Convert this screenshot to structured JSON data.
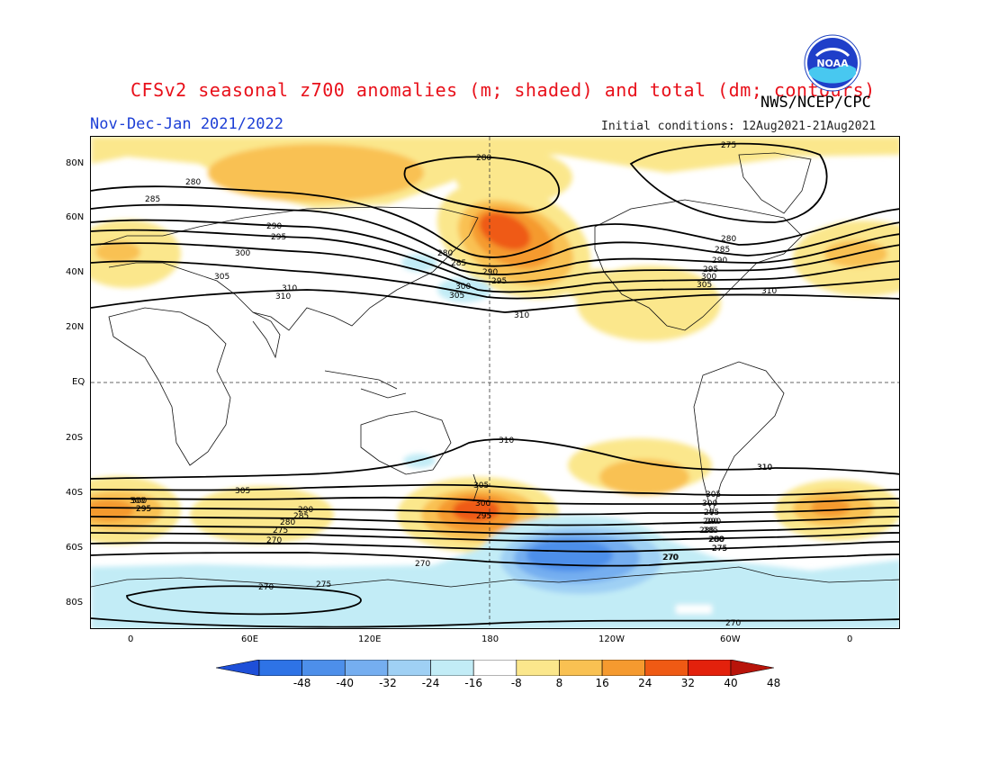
{
  "header": {
    "title": "CFSv2 seasonal z700 anomalies (m; shaded) and total (dm; contours)",
    "agency": "NWS/NCEP/CPC",
    "period": "Nov-Dec-Jan 2021/2022",
    "initial_conditions": "Initial conditions: 12Aug2021-21Aug2021",
    "logo_text": "NOAA"
  },
  "axes": {
    "lat_labels": [
      "80N",
      "60N",
      "40N",
      "20N",
      "EQ",
      "20S",
      "40S",
      "60S",
      "80S"
    ],
    "lon_labels": [
      "0",
      "60E",
      "120E",
      "180",
      "120W",
      "60W",
      "0"
    ]
  },
  "colorbar": {
    "labels": [
      "-48",
      "-40",
      "-32",
      "-24",
      "-16",
      "-8",
      "8",
      "16",
      "24",
      "32",
      "40",
      "48"
    ],
    "colors": [
      "#1e4fd8",
      "#2e73e6",
      "#4d8fea",
      "#75aef0",
      "#9fd0f4",
      "#c2ecf6",
      "#ffffff",
      "#fbe78c",
      "#f9c152",
      "#f59a2f",
      "#ef5a14",
      "#e3210c",
      "#b8140a"
    ]
  },
  "contour_labels": [
    {
      "text": "275"
    },
    {
      "text": "280"
    },
    {
      "text": "280"
    },
    {
      "text": "285"
    },
    {
      "text": "290"
    },
    {
      "text": "295"
    },
    {
      "text": "300"
    },
    {
      "text": "305"
    },
    {
      "text": "310"
    },
    {
      "text": "310"
    },
    {
      "text": "280"
    },
    {
      "text": "285"
    },
    {
      "text": "290"
    },
    {
      "text": "295"
    },
    {
      "text": "300"
    },
    {
      "text": "305"
    },
    {
      "text": "310"
    },
    {
      "text": "280"
    },
    {
      "text": "285"
    },
    {
      "text": "290"
    },
    {
      "text": "295"
    },
    {
      "text": "300"
    },
    {
      "text": "305"
    },
    {
      "text": "310"
    },
    {
      "text": "310"
    },
    {
      "text": "310"
    },
    {
      "text": "305"
    },
    {
      "text": "300"
    },
    {
      "text": "295"
    },
    {
      "text": "290"
    },
    {
      "text": "285"
    },
    {
      "text": "280"
    },
    {
      "text": "275"
    },
    {
      "text": "270"
    },
    {
      "text": "300"
    },
    {
      "text": "295"
    },
    {
      "text": "305"
    },
    {
      "text": "300"
    },
    {
      "text": "295"
    },
    {
      "text": "290"
    },
    {
      "text": "285"
    },
    {
      "text": "280"
    },
    {
      "text": "275"
    },
    {
      "text": "270"
    },
    {
      "text": "310"
    },
    {
      "text": "305"
    },
    {
      "text": "300"
    },
    {
      "text": "295"
    },
    {
      "text": "290"
    },
    {
      "text": "285"
    },
    {
      "text": "280"
    },
    {
      "text": "275"
    },
    {
      "text": "270"
    },
    {
      "text": "270"
    },
    {
      "text": "275"
    },
    {
      "text": "270"
    },
    {
      "text": "270"
    }
  ]
}
